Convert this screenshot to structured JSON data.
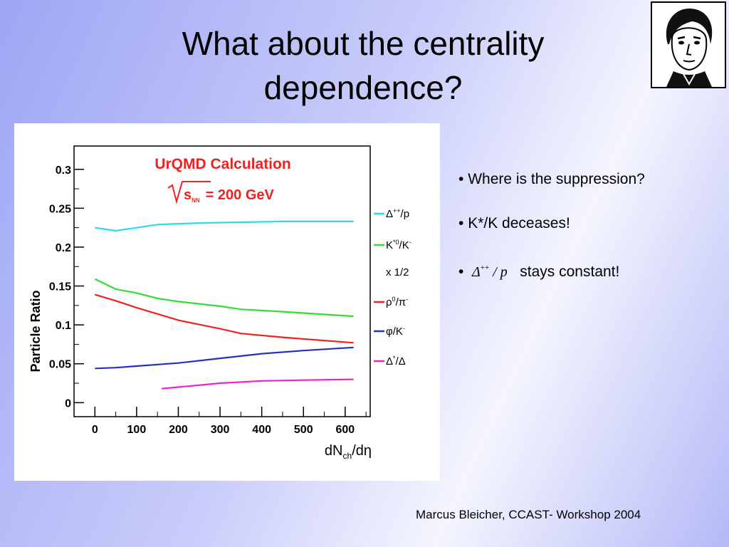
{
  "slide": {
    "title_line1": "What about the centrality",
    "title_line2": "dependence?",
    "footer": "Marcus Bleicher, CCAST- Workshop 2004"
  },
  "bullets": [
    {
      "text": "Where is the suppression?"
    },
    {
      "text": "K*/K deceases!"
    },
    {
      "math_symbol": "Δ",
      "math_sup": "++",
      "math_rest": " / p",
      "text": "stays constant!"
    }
  ],
  "portrait": {
    "icon": "portrait-sketch-icon"
  },
  "chart_data": {
    "type": "line",
    "title": "UrQMD Calculation",
    "subtitle_prefix": "s",
    "subtitle_sub": "NN",
    "subtitle_value": "= 200 GeV",
    "xlabel": "dN",
    "xlabel_sub": "ch",
    "xlabel_end": "/dη",
    "ylabel": "Particle Ratio",
    "xlim": [
      -50,
      660
    ],
    "ylim": [
      -0.018,
      0.33
    ],
    "x_ticks": [
      0,
      100,
      200,
      300,
      400,
      500,
      600
    ],
    "y_ticks": [
      0,
      0.05,
      0.1,
      0.15,
      0.2,
      0.25,
      0.3
    ],
    "y_tick_labels": [
      "0",
      "0.05",
      "0.1",
      "0.15",
      "0.2",
      "0.25",
      "0.3"
    ],
    "grid": false,
    "legend_position": "right",
    "legend_note": "x 1/2",
    "series": [
      {
        "name": "Δ++/p",
        "label_main": "Δ",
        "label_sup": "++",
        "label_tail": "/p",
        "color": "#2ed8ee",
        "points": [
          [
            0,
            0.225
          ],
          [
            50,
            0.221
          ],
          [
            100,
            0.225
          ],
          [
            150,
            0.229
          ],
          [
            250,
            0.231
          ],
          [
            350,
            0.232
          ],
          [
            450,
            0.233
          ],
          [
            620,
            0.233
          ]
        ]
      },
      {
        "name": "K*0/K-",
        "label_main": "K",
        "label_sup": "*0",
        "label_tail": "/K",
        "label_tail_sup": "-",
        "color": "#33dd33",
        "points": [
          [
            0,
            0.159
          ],
          [
            50,
            0.146
          ],
          [
            100,
            0.141
          ],
          [
            150,
            0.134
          ],
          [
            200,
            0.13
          ],
          [
            300,
            0.124
          ],
          [
            350,
            0.12
          ],
          [
            450,
            0.117
          ],
          [
            620,
            0.111
          ]
        ]
      },
      {
        "name": "ρ0/π-",
        "label_main": "ρ",
        "label_sup": "0",
        "label_tail": "/π",
        "label_tail_sup": "-",
        "color": "#ee2222",
        "points": [
          [
            0,
            0.139
          ],
          [
            50,
            0.131
          ],
          [
            100,
            0.122
          ],
          [
            200,
            0.106
          ],
          [
            300,
            0.095
          ],
          [
            350,
            0.089
          ],
          [
            450,
            0.084
          ],
          [
            620,
            0.077
          ]
        ]
      },
      {
        "name": "φ/K-",
        "label_main": "φ",
        "label_sup": "",
        "label_tail": "/K",
        "label_tail_sup": "-",
        "color": "#2233bb",
        "points": [
          [
            0,
            0.044
          ],
          [
            50,
            0.045
          ],
          [
            100,
            0.047
          ],
          [
            200,
            0.051
          ],
          [
            300,
            0.057
          ],
          [
            400,
            0.063
          ],
          [
            500,
            0.067
          ],
          [
            620,
            0.071
          ]
        ]
      },
      {
        "name": "Δ*/Δ",
        "label_main": "Δ",
        "label_sup": "*",
        "label_tail": "/Δ",
        "color": "#ee22cc",
        "points": [
          [
            160,
            0.018
          ],
          [
            200,
            0.02
          ],
          [
            300,
            0.025
          ],
          [
            400,
            0.028
          ],
          [
            500,
            0.029
          ],
          [
            620,
            0.03
          ]
        ]
      }
    ]
  }
}
